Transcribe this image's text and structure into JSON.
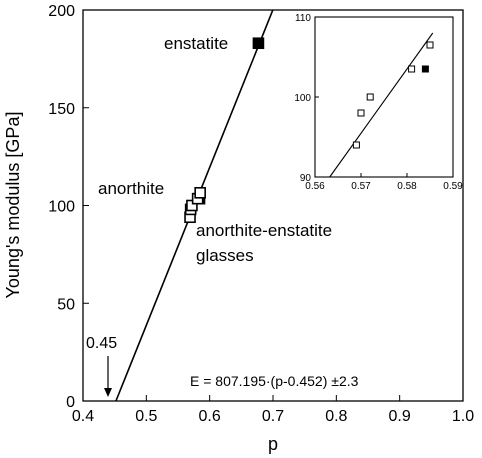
{
  "chart_data": [
    {
      "type": "scatter",
      "xlabel": "p",
      "ylabel": "Young's modulus [GPa]",
      "xlim": [
        0.4,
        1.0
      ],
      "ylim": [
        0,
        200
      ],
      "xticks": [
        "0.4",
        "0.5",
        "0.6",
        "0.7",
        "0.8",
        "0.9",
        "1.0"
      ],
      "yticks": [
        "0",
        "50",
        "100",
        "150",
        "200"
      ],
      "fit_line": {
        "x": [
          0.452,
          0.7
        ],
        "y": [
          0,
          200.2
        ]
      },
      "series": [
        {
          "marker": "filled-square",
          "points": [
            {
              "x": 0.677,
              "y": 183
            },
            {
              "x": 0.584,
              "y": 103.5
            }
          ]
        },
        {
          "marker": "open-square",
          "points": [
            {
              "x": 0.569,
              "y": 94
            },
            {
              "x": 0.57,
              "y": 98
            },
            {
              "x": 0.572,
              "y": 100
            },
            {
              "x": 0.581,
              "y": 103.5
            },
            {
              "x": 0.585,
              "y": 106.5
            }
          ]
        }
      ],
      "annotations": {
        "enstatite": "enstatite",
        "anorthite": "anorthite",
        "glasses_line1": "anorthite-enstatite",
        "glasses_line2": "glasses",
        "intercept": "0.45",
        "equation": "E = 807.195·(p-0.452) ±2.3"
      }
    },
    {
      "type": "scatter",
      "xlim": [
        0.56,
        0.59
      ],
      "ylim": [
        90,
        110
      ],
      "xticks": [
        "0.56",
        "0.57",
        "0.58",
        "0.59"
      ],
      "yticks": [
        "90",
        "100",
        "110"
      ],
      "fit_line": {
        "x": [
          0.5632,
          0.5856
        ],
        "y": [
          90,
          108
        ]
      },
      "series": [
        {
          "marker": "filled-square",
          "points": [
            {
              "x": 0.584,
              "y": 103.5
            }
          ]
        },
        {
          "marker": "open-square",
          "points": [
            {
              "x": 0.569,
              "y": 94
            },
            {
              "x": 0.57,
              "y": 98
            },
            {
              "x": 0.572,
              "y": 100
            },
            {
              "x": 0.581,
              "y": 103.5
            },
            {
              "x": 0.585,
              "y": 106.5
            }
          ]
        }
      ]
    }
  ]
}
